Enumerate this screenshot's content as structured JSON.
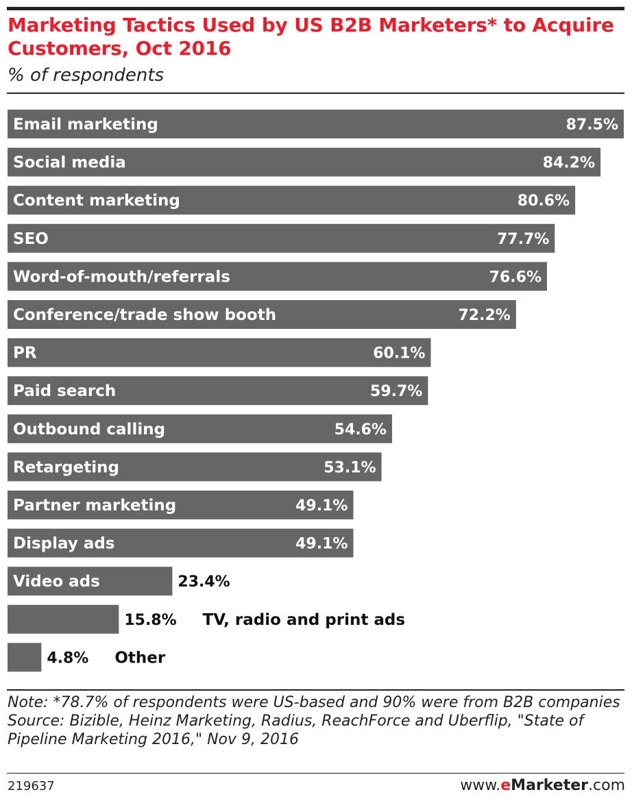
{
  "header": {
    "title": "Marketing Tactics Used by US B2B Marketers* to Acquire Customers, Oct 2016",
    "subtitle": "% of respondents"
  },
  "colors": {
    "bar": "#666666",
    "bar_label_text": "#ffffff",
    "outside_text": "#111111",
    "title": "#e4202e"
  },
  "chart_data": {
    "type": "bar",
    "orientation": "horizontal",
    "categories": [
      "Email marketing",
      "Social media",
      "Content marketing",
      "SEO",
      "Word-of-mouth/referrals",
      "Conference/trade show booth",
      "PR",
      "Paid search",
      "Outbound calling",
      "Retargeting",
      "Partner marketing",
      "Display ads",
      "Video ads",
      "TV, radio and print ads",
      "Other"
    ],
    "values": [
      87.5,
      84.2,
      80.6,
      77.7,
      76.6,
      72.2,
      60.1,
      59.7,
      54.6,
      53.1,
      49.1,
      49.1,
      23.4,
      15.8,
      4.8
    ],
    "value_labels": [
      "87.5%",
      "84.2%",
      "80.6%",
      "77.7%",
      "76.6%",
      "72.2%",
      "60.1%",
      "59.7%",
      "54.6%",
      "53.1%",
      "49.1%",
      "49.1%",
      "23.4%",
      "15.8%",
      "4.8%"
    ],
    "xlim": [
      0,
      87.5
    ],
    "title": "Marketing Tactics Used by US B2B Marketers* to Acquire Customers, Oct 2016",
    "subtitle": "% of respondents",
    "grid": false,
    "legend": "none"
  },
  "notes": {
    "note": "Note: *78.7% of respondents were US-based and 90% were from B2B companies",
    "source": "Source: Bizible, Heinz Marketing, Radius, ReachForce and Uberflip, \"State of Pipeline Marketing 2016,\" Nov 9, 2016"
  },
  "footer": {
    "chart_id": "219637",
    "brand_prefix": "www.",
    "brand_e": "e",
    "brand_name": "Marketer",
    "brand_suffix": ".com"
  }
}
